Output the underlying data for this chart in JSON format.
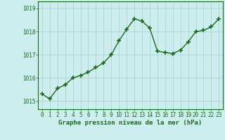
{
  "hours": [
    0,
    1,
    2,
    3,
    4,
    5,
    6,
    7,
    8,
    9,
    10,
    11,
    12,
    13,
    14,
    15,
    16,
    17,
    18,
    19,
    20,
    21,
    22,
    23
  ],
  "pressure": [
    1015.3,
    1015.1,
    1015.55,
    1015.7,
    1016.0,
    1016.1,
    1016.25,
    1016.45,
    1016.65,
    1017.0,
    1017.6,
    1018.1,
    1018.55,
    1018.45,
    1018.15,
    1017.15,
    1017.1,
    1017.05,
    1017.2,
    1017.55,
    1018.0,
    1018.05,
    1018.2,
    1018.55
  ],
  "line_color": "#1a6b1a",
  "marker_color": "#1a6b1a",
  "bg_color": "#cceeee",
  "grid_color": "#aacccc",
  "axis_color": "#1a6b1a",
  "ylabel_ticks": [
    1015,
    1016,
    1017,
    1018,
    1019
  ],
  "ylim": [
    1014.65,
    1019.3
  ],
  "xlim": [
    -0.5,
    23.5
  ],
  "xlabel": "Graphe pression niveau de la mer (hPa)",
  "xtick_labels": [
    "0",
    "1",
    "2",
    "3",
    "4",
    "5",
    "6",
    "7",
    "8",
    "9",
    "10",
    "11",
    "12",
    "13",
    "14",
    "15",
    "16",
    "17",
    "18",
    "19",
    "20",
    "21",
    "22",
    "23"
  ],
  "label_fontsize": 6.5,
  "tick_fontsize": 5.5,
  "line_width": 1.0,
  "marker_size": 4
}
